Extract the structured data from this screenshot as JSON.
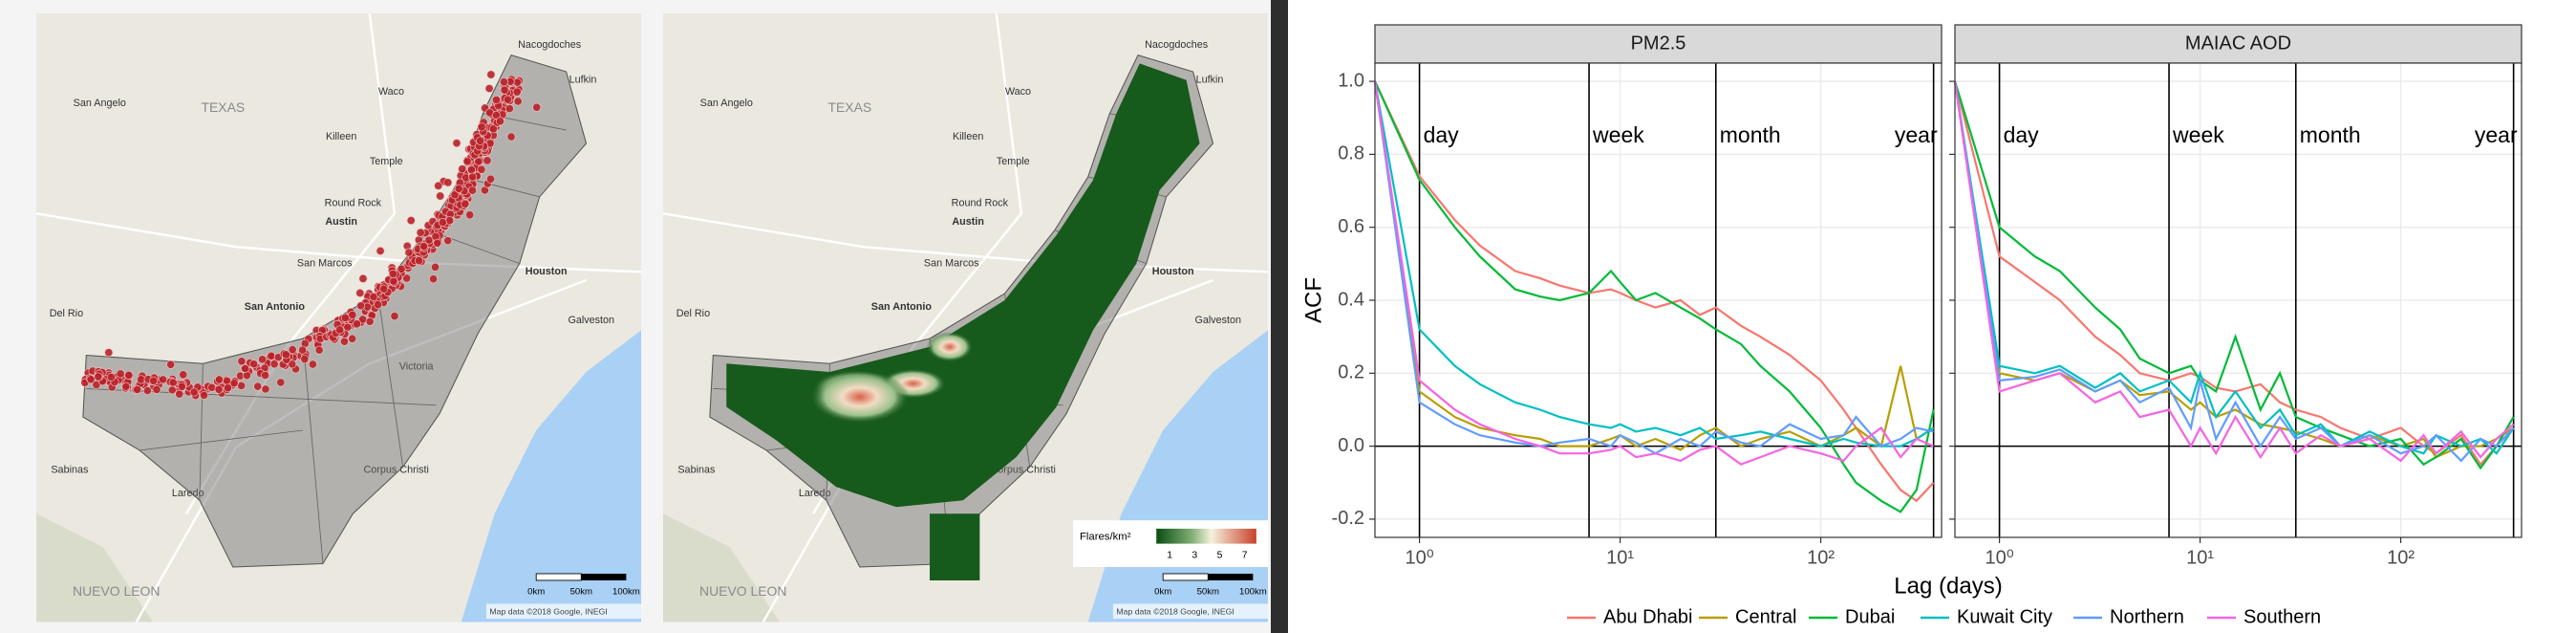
{
  "maps": {
    "labels": [
      "TEXAS",
      "San Angelo",
      "Waco",
      "Killeen",
      "Temple",
      "Round Rock",
      "Austin",
      "San Marcos",
      "San Antonio",
      "Houston",
      "Del Rio",
      "Victoria",
      "Corpus Christi",
      "Laredo",
      "Nacogdoches",
      "Lufkin",
      "Galveston",
      "NUEVO LEON",
      "Sabinas"
    ],
    "scale_labels": [
      "0km",
      "50km",
      "100km"
    ],
    "attribution": "Map data ©2018 Google, INEGI",
    "legend_title": "Flares/km²",
    "legend_ticks": [
      1,
      3,
      5,
      7
    ]
  },
  "chart_data": {
    "type": "line",
    "x_label": "Lag (days)",
    "y_label": "ACF",
    "xscale": "log",
    "xlim": [
      0.6,
      400
    ],
    "xticks": [
      {
        "value": 1,
        "label": "10⁰"
      },
      {
        "value": 10,
        "label": "10¹"
      },
      {
        "value": 100,
        "label": "10²"
      }
    ],
    "ylim": [
      -0.25,
      1.05
    ],
    "yticks": [
      -0.2,
      {
        "value": 0,
        "label": "0.0"
      },
      0.2,
      0.4,
      0.6,
      0.8,
      {
        "value": 1,
        "label": "1.0"
      }
    ],
    "grid": true,
    "legend": "bottom",
    "annotations": [
      {
        "x": 1,
        "label": "day"
      },
      {
        "x": 7,
        "label": "week"
      },
      {
        "x": 30,
        "label": "month"
      },
      {
        "x": 365,
        "label": "year"
      }
    ],
    "facets": [
      {
        "title": "PM2.5",
        "x": [
          0.6,
          1,
          1.5,
          2,
          3,
          4,
          5,
          7,
          9,
          10,
          12,
          15,
          20,
          25,
          30,
          40,
          50,
          70,
          100,
          130,
          150,
          200,
          250,
          300,
          365
        ],
        "series": [
          {
            "name": "Abu Dhabi",
            "color": "#F8766D",
            "values": [
              1,
              0.74,
              0.62,
              0.55,
              0.48,
              0.46,
              0.44,
              0.42,
              0.43,
              0.42,
              0.4,
              0.38,
              0.4,
              0.36,
              0.38,
              0.33,
              0.3,
              0.25,
              0.18,
              0.1,
              0.05,
              -0.05,
              -0.12,
              -0.15,
              -0.1
            ]
          },
          {
            "name": "Central",
            "color": "#B79F00",
            "values": [
              1,
              0.15,
              0.08,
              0.05,
              0.03,
              0.02,
              0,
              0,
              0.02,
              0.03,
              0,
              0.02,
              -0.01,
              0.03,
              0.05,
              0,
              0.02,
              0.04,
              0,
              0.03,
              0.05,
              0,
              0.22,
              0.02,
              0.05
            ]
          },
          {
            "name": "Dubai",
            "color": "#00BA38",
            "values": [
              1,
              0.73,
              0.6,
              0.52,
              0.43,
              0.41,
              0.4,
              0.42,
              0.48,
              0.45,
              0.4,
              0.42,
              0.38,
              0.35,
              0.32,
              0.28,
              0.22,
              0.15,
              0.05,
              -0.05,
              -0.1,
              -0.15,
              -0.18,
              -0.12,
              0.1
            ]
          },
          {
            "name": "Kuwait City",
            "color": "#00BFC4",
            "values": [
              1,
              0.32,
              0.22,
              0.17,
              0.12,
              0.1,
              0.08,
              0.06,
              0.05,
              0.06,
              0.04,
              0.05,
              0.03,
              0.05,
              0.02,
              0.03,
              0.04,
              0.02,
              0,
              0.02,
              0.01,
              0,
              0,
              0.02,
              0.05
            ]
          },
          {
            "name": "Northern",
            "color": "#619CFF",
            "values": [
              1,
              0.12,
              0.06,
              0.03,
              0.01,
              0,
              0.01,
              0.02,
              0,
              0.03,
              0.01,
              -0.02,
              0.02,
              0,
              0.04,
              0.01,
              0,
              0.06,
              0.02,
              0.03,
              0.08,
              0,
              0.02,
              0.05,
              0.04
            ]
          },
          {
            "name": "Southern",
            "color": "#F564E3",
            "values": [
              1,
              0.18,
              0.1,
              0.06,
              0.02,
              0,
              -0.02,
              -0.02,
              -0.01,
              0,
              -0.03,
              -0.02,
              -0.04,
              -0.01,
              0,
              -0.05,
              -0.03,
              0,
              -0.02,
              -0.04,
              0,
              0.05,
              -0.03,
              0.02,
              0
            ]
          }
        ]
      },
      {
        "title": "MAIAC AOD",
        "x": [
          0.6,
          1,
          1.5,
          2,
          3,
          4,
          5,
          7,
          9,
          10,
          12,
          15,
          20,
          25,
          30,
          40,
          50,
          70,
          100,
          130,
          150,
          200,
          250,
          300,
          365
        ],
        "series": [
          {
            "name": "Abu Dhabi",
            "color": "#F8766D",
            "values": [
              1,
              0.52,
              0.45,
              0.4,
              0.3,
              0.25,
              0.2,
              0.18,
              0.2,
              0.19,
              0.16,
              0.15,
              0.17,
              0.12,
              0.1,
              0.08,
              0.05,
              0.02,
              0.05,
              0,
              -0.02,
              0.03,
              -0.05,
              0,
              0.05
            ]
          },
          {
            "name": "Central",
            "color": "#B79F00",
            "values": [
              1,
              0.2,
              0.18,
              0.2,
              0.15,
              0.18,
              0.14,
              0.15,
              0.1,
              0.12,
              0.08,
              0.1,
              0.06,
              0.05,
              0.04,
              0.02,
              0,
              0.03,
              0,
              0.02,
              -0.03,
              0,
              0,
              0.02,
              0.05
            ]
          },
          {
            "name": "Dubai",
            "color": "#00BA38",
            "values": [
              1,
              0.6,
              0.52,
              0.48,
              0.38,
              0.32,
              0.24,
              0.2,
              0.22,
              0.18,
              0.15,
              0.3,
              0.1,
              0.2,
              0.08,
              0.05,
              0.03,
              0,
              0.02,
              -0.05,
              -0.03,
              0.02,
              -0.06,
              0,
              0.08
            ]
          },
          {
            "name": "Kuwait City",
            "color": "#00BFC4",
            "values": [
              1,
              0.22,
              0.2,
              0.22,
              0.16,
              0.2,
              0.15,
              0.18,
              0.12,
              0.2,
              0.08,
              0.15,
              0.05,
              0.1,
              0.03,
              0.06,
              0,
              0.04,
              0,
              -0.02,
              0.03,
              0,
              0.02,
              -0.02,
              0.05
            ]
          },
          {
            "name": "Northern",
            "color": "#619CFF",
            "values": [
              1,
              0.18,
              0.19,
              0.21,
              0.15,
              0.18,
              0.12,
              0.16,
              0.05,
              0.18,
              0.02,
              0.12,
              0,
              0.08,
              0.02,
              0.05,
              0,
              0.03,
              -0.02,
              0,
              0.03,
              -0.04,
              0.02,
              0,
              0.05
            ]
          },
          {
            "name": "Southern",
            "color": "#F564E3",
            "values": [
              1,
              0.15,
              0.18,
              0.2,
              0.12,
              0.15,
              0.08,
              0.1,
              0,
              0.05,
              -0.02,
              0.08,
              -0.03,
              0.05,
              -0.02,
              0.03,
              0,
              0.02,
              -0.04,
              0.03,
              -0.02,
              0.04,
              -0.03,
              0.02,
              0.06
            ]
          }
        ]
      }
    ]
  }
}
